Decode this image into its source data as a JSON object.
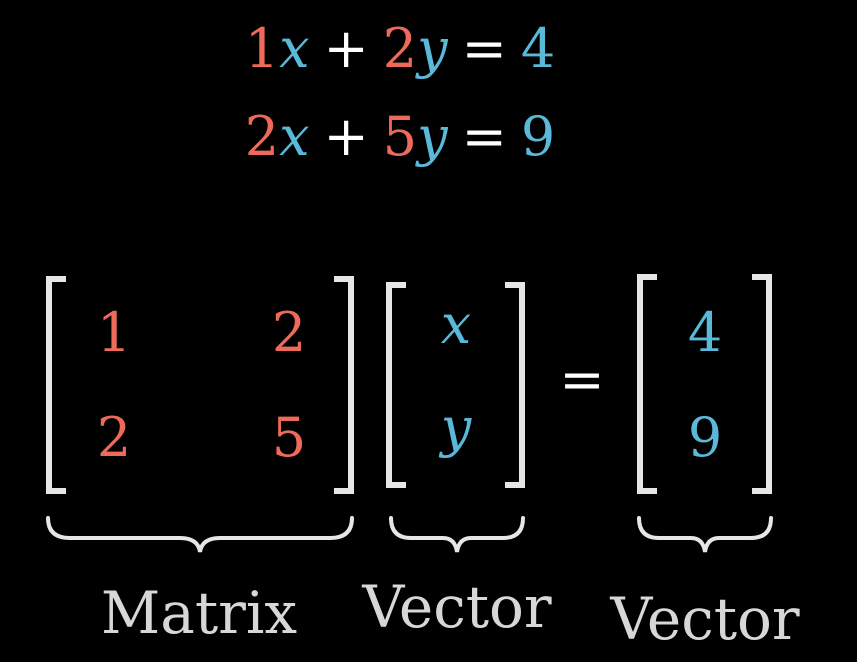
{
  "equations": [
    {
      "a": "1",
      "x": "x",
      "op": "+",
      "b": "2",
      "y": "y",
      "eq": "=",
      "rhs": "4"
    },
    {
      "a": "2",
      "x": "x",
      "op": "+",
      "b": "5",
      "y": "y",
      "eq": "=",
      "rhs": "9"
    }
  ],
  "matrix": {
    "r1c1": "1",
    "r1c2": "2",
    "r2c1": "2",
    "r2c2": "5"
  },
  "vector_vars": {
    "top": "x",
    "bottom": "y"
  },
  "vector_rhs": {
    "top": "4",
    "bottom": "9"
  },
  "equals": "=",
  "labels": {
    "matrix": "Matrix",
    "vector_vars": "Vector",
    "vector_rhs": "Vector"
  },
  "colors": {
    "coefficient": "#ef6a5a",
    "variable": "#5ab8d8",
    "operator": "#ffffff",
    "label": "#d7d7d7"
  }
}
